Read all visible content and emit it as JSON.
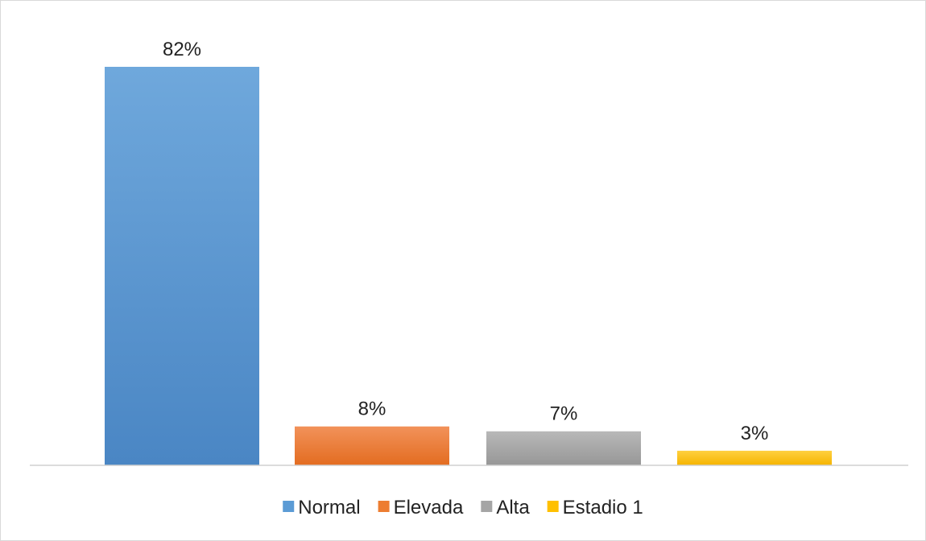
{
  "chart_data": {
    "type": "bar",
    "categories": [
      "Normal",
      "Elevada",
      "Alta",
      "Estadio 1"
    ],
    "values": [
      82,
      8,
      7,
      3
    ],
    "value_labels": [
      "82%",
      "8%",
      "7%",
      "3%"
    ],
    "unit": "%",
    "title": "",
    "xlabel": "",
    "ylabel": "",
    "ylim": [
      0,
      82
    ],
    "grid": false,
    "legend_position": "bottom",
    "series": [
      {
        "name": "Normal",
        "value": 82,
        "color": "#5b9bd5",
        "color_light": "#6fa8dc",
        "color_dark": "#4a86c4"
      },
      {
        "name": "Elevada",
        "value": 8,
        "color": "#ed7d31",
        "color_light": "#f2925a",
        "color_dark": "#e36c20"
      },
      {
        "name": "Alta",
        "value": 7,
        "color": "#a5a5a5",
        "color_light": "#b8b8b8",
        "color_dark": "#979797"
      },
      {
        "name": "Estadio 1",
        "value": 3,
        "color": "#ffc000",
        "color_light": "#ffd040",
        "color_dark": "#f5b400"
      }
    ]
  },
  "colors": {
    "axis": "#d0d0d0",
    "border": "#d9d9d9",
    "text": "#222222"
  }
}
